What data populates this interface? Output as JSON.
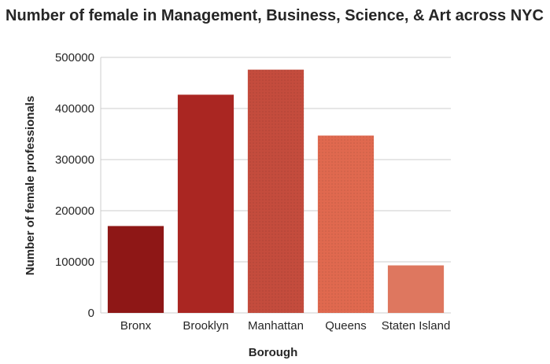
{
  "chart_data": {
    "type": "bar",
    "title": "Number of female in Management, Business, Science, & Art across NYC",
    "xlabel": "Borough",
    "ylabel": "Number of female professionals",
    "categories": [
      "Bronx",
      "Brooklyn",
      "Manhattan",
      "Queens",
      "Staten Island"
    ],
    "values": [
      170000,
      427000,
      476000,
      347000,
      93000
    ],
    "colors": [
      "#8e1716",
      "#aa2622",
      "#c44c3d",
      "#e0694f",
      "#de775f"
    ],
    "ylim": [
      0,
      500000
    ],
    "yticks": [
      "0",
      "100000",
      "200000",
      "300000",
      "400000",
      "500000"
    ],
    "grid": "horizontal",
    "legend": "none"
  }
}
